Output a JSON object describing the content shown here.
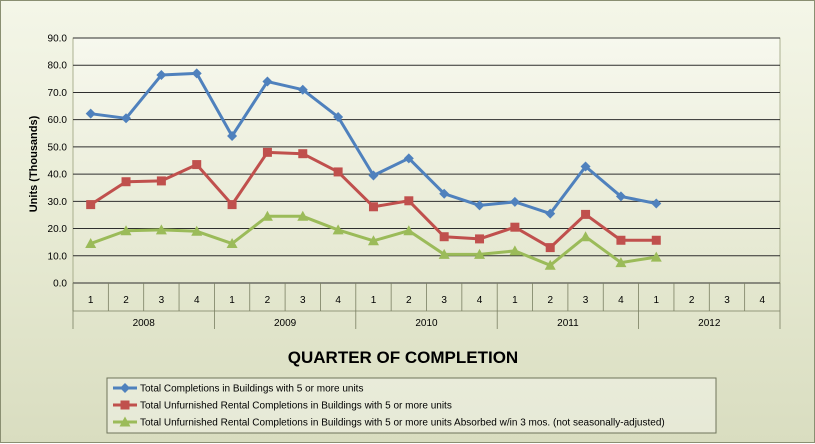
{
  "chart_data": {
    "type": "line",
    "title": "",
    "xlabel": "QUARTER OF COMPLETION",
    "ylabel": "Units (Thousands)",
    "ylim": [
      0,
      90
    ],
    "yticks": [
      "0.0",
      "10.0",
      "20.0",
      "30.0",
      "40.0",
      "50.0",
      "60.0",
      "70.0",
      "80.0",
      "90.0"
    ],
    "grid": "horizontal",
    "legend_placement": "bottom",
    "quarters": [
      "1",
      "2",
      "3",
      "4",
      "1",
      "2",
      "3",
      "4",
      "1",
      "2",
      "3",
      "4",
      "1",
      "2",
      "3",
      "4",
      "1",
      "2",
      "3",
      "4"
    ],
    "years": [
      "2008",
      "2009",
      "2010",
      "2011",
      "2012"
    ],
    "series": [
      {
        "name": "Total Completions in Buildings with 5 or more units",
        "color": "#4f81bd",
        "marker": "diamond",
        "values": [
          62.2,
          60.5,
          76.4,
          77.0,
          54.0,
          74.0,
          71.0,
          61.0,
          39.5,
          45.8,
          32.8,
          28.5,
          29.8,
          25.5,
          42.8,
          31.8,
          29.2,
          null,
          null,
          null
        ]
      },
      {
        "name": "Total Unfurnished Rental Completions in Buildings with 5 or more units",
        "color": "#c0504d",
        "marker": "square",
        "values": [
          28.8,
          37.2,
          37.5,
          43.5,
          28.8,
          48.0,
          47.5,
          40.8,
          28.0,
          30.2,
          17.0,
          16.2,
          20.5,
          13.0,
          25.2,
          15.7,
          15.7,
          null,
          null,
          null
        ]
      },
      {
        "name": "Total Unfurnished Rental Completions in Buildings with 5 or more units Absorbed w/in 3 mos. (not seasonally-adjusted)",
        "color": "#9bbb59",
        "marker": "triangle",
        "values": [
          14.5,
          19.2,
          19.5,
          19.0,
          14.5,
          24.5,
          24.5,
          19.5,
          15.5,
          19.2,
          10.5,
          10.5,
          11.8,
          6.5,
          17.0,
          7.5,
          9.5,
          null,
          null,
          null
        ]
      }
    ]
  }
}
